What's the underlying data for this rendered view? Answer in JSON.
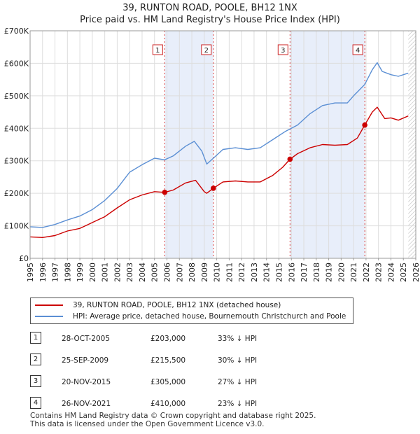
{
  "title_line1": "39, RUNTON ROAD, POOLE, BH12 1NX",
  "title_line2": "Price paid vs. HM Land Registry's House Price Index (HPI)",
  "chart_data": {
    "type": "line",
    "xlim": [
      1995,
      2026
    ],
    "ylim": [
      0,
      700000
    ],
    "yticks": [
      0,
      100000,
      200000,
      300000,
      400000,
      500000,
      600000,
      700000
    ],
    "ytick_labels": [
      "£0",
      "£100K",
      "£200K",
      "£300K",
      "£400K",
      "£500K",
      "£600K",
      "£700K"
    ],
    "xtick_labels": [
      "1995",
      "1996",
      "1997",
      "1998",
      "1999",
      "2000",
      "2001",
      "2002",
      "2003",
      "2004",
      "2005",
      "2006",
      "2007",
      "2008",
      "2009",
      "2010",
      "2011",
      "2012",
      "2013",
      "2014",
      "2015",
      "2016",
      "2017",
      "2018",
      "2019",
      "2020",
      "2021",
      "2022",
      "2023",
      "2024",
      "2025",
      "2026"
    ],
    "series": [
      {
        "name": "39, RUNTON ROAD, POOLE, BH12 1NX (detached house)",
        "color": "#cc0000",
        "points": [
          [
            1995.0,
            66000
          ],
          [
            1996.0,
            64000
          ],
          [
            1997.0,
            70000
          ],
          [
            1998.0,
            84000
          ],
          [
            1999.0,
            92000
          ],
          [
            2000.0,
            110000
          ],
          [
            2001.0,
            128000
          ],
          [
            2002.0,
            155000
          ],
          [
            2003.0,
            180000
          ],
          [
            2004.0,
            195000
          ],
          [
            2005.0,
            205000
          ],
          [
            2005.82,
            203000
          ],
          [
            2006.5,
            210000
          ],
          [
            2007.5,
            232000
          ],
          [
            2008.3,
            240000
          ],
          [
            2009.0,
            205000
          ],
          [
            2009.2,
            200000
          ],
          [
            2009.73,
            215500
          ],
          [
            2010.5,
            235000
          ],
          [
            2011.5,
            238000
          ],
          [
            2012.5,
            235000
          ],
          [
            2013.5,
            235000
          ],
          [
            2014.5,
            255000
          ],
          [
            2015.3,
            280000
          ],
          [
            2015.89,
            305000
          ],
          [
            2016.5,
            322000
          ],
          [
            2017.5,
            340000
          ],
          [
            2018.5,
            350000
          ],
          [
            2019.5,
            348000
          ],
          [
            2020.5,
            350000
          ],
          [
            2021.3,
            370000
          ],
          [
            2021.9,
            410000
          ],
          [
            2022.5,
            450000
          ],
          [
            2022.9,
            465000
          ],
          [
            2023.5,
            430000
          ],
          [
            2024.0,
            432000
          ],
          [
            2024.6,
            425000
          ],
          [
            2025.4,
            438000
          ]
        ]
      },
      {
        "name": "HPI: Average price, detached house, Bournemouth Christchurch and Poole",
        "color": "#5b8fd4",
        "points": [
          [
            1995.0,
            97000
          ],
          [
            1996.0,
            95000
          ],
          [
            1997.0,
            104000
          ],
          [
            1998.0,
            118000
          ],
          [
            1999.0,
            130000
          ],
          [
            2000.0,
            150000
          ],
          [
            2001.0,
            178000
          ],
          [
            2002.0,
            215000
          ],
          [
            2003.0,
            265000
          ],
          [
            2004.0,
            288000
          ],
          [
            2005.0,
            308000
          ],
          [
            2005.82,
            303000
          ],
          [
            2006.5,
            315000
          ],
          [
            2007.5,
            345000
          ],
          [
            2008.2,
            360000
          ],
          [
            2008.8,
            330000
          ],
          [
            2009.2,
            290000
          ],
          [
            2009.73,
            308000
          ],
          [
            2010.5,
            335000
          ],
          [
            2011.5,
            340000
          ],
          [
            2012.5,
            335000
          ],
          [
            2013.5,
            340000
          ],
          [
            2014.5,
            365000
          ],
          [
            2015.5,
            390000
          ],
          [
            2016.5,
            410000
          ],
          [
            2017.5,
            445000
          ],
          [
            2018.5,
            470000
          ],
          [
            2019.5,
            478000
          ],
          [
            2020.5,
            478000
          ],
          [
            2021.0,
            500000
          ],
          [
            2021.9,
            535000
          ],
          [
            2022.5,
            580000
          ],
          [
            2022.9,
            602000
          ],
          [
            2023.3,
            575000
          ],
          [
            2024.0,
            565000
          ],
          [
            2024.6,
            560000
          ],
          [
            2025.4,
            570000
          ]
        ]
      }
    ],
    "sales": [
      {
        "label": "1",
        "x": 2005.82,
        "value": 203000
      },
      {
        "label": "2",
        "x": 2009.73,
        "value": 215500
      },
      {
        "label": "3",
        "x": 2015.89,
        "value": 305000
      },
      {
        "label": "4",
        "x": 2021.9,
        "value": 410000
      }
    ],
    "shaded_ranges": [
      [
        2005.82,
        2009.73
      ],
      [
        2015.89,
        2021.9
      ]
    ],
    "hatched_from": 2025.4,
    "grid": true
  },
  "legend": {
    "property_label": "39, RUNTON ROAD, POOLE, BH12 1NX (detached house)",
    "hpi_label": "HPI: Average price, detached house, Bournemouth Christchurch and Poole"
  },
  "transactions": [
    {
      "num": "1",
      "date": "28-OCT-2005",
      "price": "£203,000",
      "hpi": "33% ↓ HPI"
    },
    {
      "num": "2",
      "date": "25-SEP-2009",
      "price": "£215,500",
      "hpi": "30% ↓ HPI"
    },
    {
      "num": "3",
      "date": "20-NOV-2015",
      "price": "£305,000",
      "hpi": "27% ↓ HPI"
    },
    {
      "num": "4",
      "date": "26-NOV-2021",
      "price": "£410,000",
      "hpi": "23% ↓ HPI"
    }
  ],
  "footer_line1": "Contains HM Land Registry data © Crown copyright and database right 2025.",
  "footer_line2": "This data is licensed under the Open Government Licence v3.0."
}
